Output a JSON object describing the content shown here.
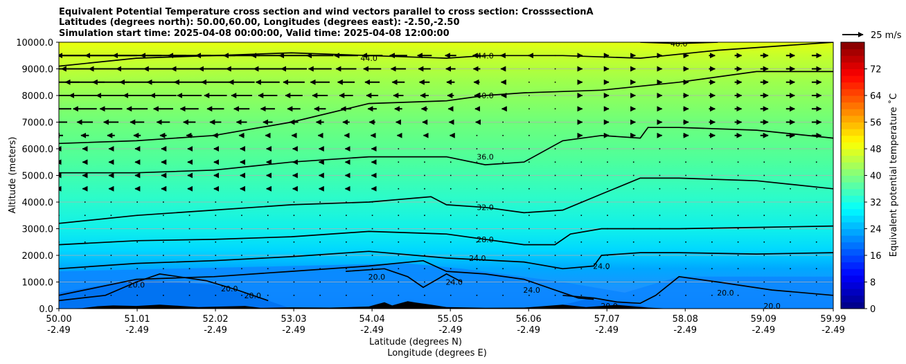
{
  "chart_data": {
    "type": "contour",
    "title_lines": [
      "Equivalent Potential Temperature cross section and wind vectors parallel to cross section: CrosssectionA",
      "Latitudes (degrees north): 50.00,60.00, Longitudes (degrees east): -2.50,-2.50",
      "Simulation start time: 2025-04-08 00:00:00, Valid time: 2025-04-08 12:00:00"
    ],
    "xlabel_lat": "Latitude (degrees N)",
    "xlabel_lon": "Longitude (degrees E)",
    "ylabel": "Altitude (meters)",
    "xlim": [
      50.0,
      59.99
    ],
    "ylim": [
      0,
      10000
    ],
    "x_ticks": [
      {
        "lat": "50.00",
        "lon": "-2.49",
        "value": 50.0
      },
      {
        "lat": "51.01",
        "lon": "-2.49",
        "value": 51.01
      },
      {
        "lat": "52.02",
        "lon": "-2.49",
        "value": 52.02
      },
      {
        "lat": "53.03",
        "lon": "-2.49",
        "value": 53.03
      },
      {
        "lat": "54.04",
        "lon": "-2.49",
        "value": 54.04
      },
      {
        "lat": "55.05",
        "lon": "-2.49",
        "value": 55.05
      },
      {
        "lat": "56.06",
        "lon": "-2.49",
        "value": 56.06
      },
      {
        "lat": "57.07",
        "lon": "-2.49",
        "value": 57.07
      },
      {
        "lat": "58.08",
        "lon": "-2.49",
        "value": 58.08
      },
      {
        "lat": "59.09",
        "lon": "-2.49",
        "value": 59.09
      },
      {
        "lat": "59.99",
        "lon": "-2.49",
        "value": 59.99
      }
    ],
    "y_ticks": [
      {
        "label": "0.0",
        "value": 0
      },
      {
        "label": "1000.0",
        "value": 1000
      },
      {
        "label": "2000.0",
        "value": 2000
      },
      {
        "label": "3000.0",
        "value": 3000
      },
      {
        "label": "4000.0",
        "value": 4000
      },
      {
        "label": "5000.0",
        "value": 5000
      },
      {
        "label": "6000.0",
        "value": 6000
      },
      {
        "label": "7000.0",
        "value": 7000
      },
      {
        "label": "8000.0",
        "value": 8000
      },
      {
        "label": "9000.0",
        "value": 9000
      },
      {
        "label": "10000.0",
        "value": 10000
      }
    ],
    "gridlines": true,
    "colorbar": {
      "label": "Equivalent potential temperature ˚C",
      "vmin": 0,
      "vmax": 80,
      "ticks": [
        "0",
        "8",
        "16",
        "24",
        "32",
        "40",
        "48",
        "56",
        "64",
        "72"
      ],
      "tick_values": [
        0,
        8,
        16,
        24,
        32,
        40,
        48,
        56,
        64,
        72
      ]
    },
    "quiver_key": {
      "label": "25 m/s",
      "speed": 25
    },
    "contours": [
      {
        "level": 20.0,
        "points": [
          [
            50.0,
            300
          ],
          [
            50.6,
            500
          ],
          [
            51.0,
            1000
          ],
          [
            51.3,
            1300
          ],
          [
            51.9,
            1050
          ],
          [
            52.3,
            700
          ],
          [
            52.7,
            300
          ]
        ],
        "labels": [
          {
            "text": "20.0",
            "at": [
              51.0,
              900
            ]
          },
          {
            "text": "20.0",
            "at": [
              52.2,
              750
            ]
          },
          {
            "text": "20.0",
            "at": [
              52.5,
              500
            ]
          }
        ]
      },
      {
        "level": 20.0,
        "points": [
          [
            53.7,
            1400
          ],
          [
            54.2,
            1500
          ],
          [
            54.5,
            1200
          ],
          [
            54.7,
            800
          ],
          [
            55.0,
            1300
          ],
          [
            55.2,
            1000
          ]
        ],
        "labels": [
          {
            "text": "20.0",
            "at": [
              54.1,
              1200
            ]
          }
        ]
      },
      {
        "level": 20.0,
        "points": [
          [
            56.5,
            500
          ],
          [
            56.9,
            400
          ],
          [
            57.2,
            250
          ],
          [
            57.5,
            200
          ],
          [
            57.7,
            500
          ],
          [
            58.0,
            1200
          ],
          [
            58.5,
            1000
          ],
          [
            59.2,
            700
          ],
          [
            59.99,
            500
          ]
        ],
        "labels": [
          {
            "text": "20.0",
            "at": [
              57.1,
              100
            ]
          },
          {
            "text": "20.0",
            "at": [
              58.6,
              600
            ]
          },
          {
            "text": "20.0",
            "at": [
              59.2,
              100
            ]
          }
        ]
      },
      {
        "level": 24.0,
        "points": [
          [
            50.0,
            500
          ],
          [
            50.5,
            800
          ],
          [
            51.0,
            1100
          ],
          [
            52.0,
            1200
          ],
          [
            53.0,
            1400
          ],
          [
            54.0,
            1600
          ],
          [
            54.7,
            1800
          ],
          [
            55.0,
            1400
          ],
          [
            55.5,
            1300
          ],
          [
            56.0,
            1100
          ],
          [
            56.4,
            700
          ],
          [
            56.7,
            400
          ],
          [
            56.9,
            350
          ]
        ],
        "labels": [
          {
            "text": "24.0",
            "at": [
              55.1,
              1000
            ]
          },
          {
            "text": "24.0",
            "at": [
              56.1,
              700
            ]
          }
        ]
      },
      {
        "level": 24.0,
        "points": [
          [
            50.0,
            1500
          ],
          [
            51.0,
            1700
          ],
          [
            52.0,
            1800
          ],
          [
            53.0,
            1950
          ],
          [
            54.0,
            2150
          ],
          [
            55.0,
            1900
          ],
          [
            56.0,
            1750
          ],
          [
            56.5,
            1500
          ],
          [
            56.9,
            1600
          ],
          [
            57.0,
            2000
          ],
          [
            57.5,
            2100
          ],
          [
            58.0,
            2100
          ],
          [
            59.0,
            2050
          ],
          [
            59.99,
            2100
          ]
        ],
        "labels": [
          {
            "text": "24.0",
            "at": [
              55.4,
              1900
            ]
          },
          {
            "text": "24.0",
            "at": [
              57.0,
              1600
            ]
          }
        ]
      },
      {
        "level": 28.0,
        "points": [
          [
            50.0,
            2400
          ],
          [
            51.0,
            2550
          ],
          [
            52.0,
            2600
          ],
          [
            53.0,
            2700
          ],
          [
            54.0,
            2900
          ],
          [
            55.0,
            2800
          ],
          [
            56.0,
            2400
          ],
          [
            56.4,
            2400
          ],
          [
            56.6,
            2800
          ],
          [
            57.0,
            3000
          ],
          [
            58.0,
            3000
          ],
          [
            59.0,
            3050
          ],
          [
            59.99,
            3100
          ]
        ],
        "labels": [
          {
            "text": "28.0",
            "at": [
              55.5,
              2600
            ]
          }
        ]
      },
      {
        "level": 32.0,
        "points": [
          [
            50.0,
            3200
          ],
          [
            51.0,
            3500
          ],
          [
            52.0,
            3700
          ],
          [
            53.0,
            3900
          ],
          [
            54.0,
            4000
          ],
          [
            54.8,
            4200
          ],
          [
            55.0,
            3900
          ],
          [
            55.5,
            3800
          ],
          [
            56.0,
            3600
          ],
          [
            56.5,
            3700
          ],
          [
            57.0,
            4300
          ],
          [
            57.5,
            4900
          ],
          [
            58.0,
            4900
          ],
          [
            59.0,
            4800
          ],
          [
            59.99,
            4500
          ]
        ],
        "labels": [
          {
            "text": "32.0",
            "at": [
              55.5,
              3800
            ]
          }
        ]
      },
      {
        "level": 36.0,
        "points": [
          [
            50.0,
            5100
          ],
          [
            51.0,
            5100
          ],
          [
            52.0,
            5200
          ],
          [
            53.0,
            5500
          ],
          [
            54.0,
            5700
          ],
          [
            55.0,
            5700
          ],
          [
            55.5,
            5400
          ],
          [
            56.0,
            5500
          ],
          [
            56.5,
            6300
          ],
          [
            57.0,
            6500
          ],
          [
            57.5,
            6400
          ],
          [
            57.6,
            6800
          ],
          [
            58.0,
            6800
          ],
          [
            59.0,
            6700
          ],
          [
            59.99,
            6400
          ]
        ],
        "labels": [
          {
            "text": "36.0",
            "at": [
              55.5,
              5700
            ]
          }
        ]
      },
      {
        "level": 40.0,
        "points": [
          [
            50.0,
            6200
          ],
          [
            51.0,
            6300
          ],
          [
            52.0,
            6500
          ],
          [
            53.0,
            7000
          ],
          [
            54.0,
            7700
          ],
          [
            55.0,
            7800
          ],
          [
            55.5,
            8000
          ],
          [
            56.0,
            8100
          ],
          [
            57.0,
            8200
          ],
          [
            58.0,
            8500
          ],
          [
            59.0,
            8900
          ],
          [
            59.99,
            8900
          ]
        ],
        "labels": [
          {
            "text": "40.0",
            "at": [
              55.5,
              8000
            ]
          }
        ]
      },
      {
        "level": 44.0,
        "points": [
          [
            50.0,
            9100
          ],
          [
            51.0,
            9400
          ],
          [
            52.0,
            9500
          ],
          [
            53.0,
            9600
          ],
          [
            54.0,
            9500
          ],
          [
            55.0,
            9400
          ],
          [
            55.5,
            9500
          ],
          [
            56.5,
            9500
          ],
          [
            57.5,
            9400
          ],
          [
            58.5,
            9700
          ],
          [
            59.99,
            10000
          ]
        ],
        "labels": [
          {
            "text": "44.0",
            "at": [
              54.0,
              9400
            ]
          },
          {
            "text": "44.0",
            "at": [
              55.5,
              9500
            ]
          }
        ]
      },
      {
        "level": 48.0,
        "points": [
          [
            57.5,
            10000
          ],
          [
            58.0,
            9950
          ],
          [
            58.5,
            10000
          ]
        ],
        "labels": [
          {
            "text": "48.0",
            "at": [
              58.0,
              9950
            ]
          }
        ]
      }
    ]
  }
}
